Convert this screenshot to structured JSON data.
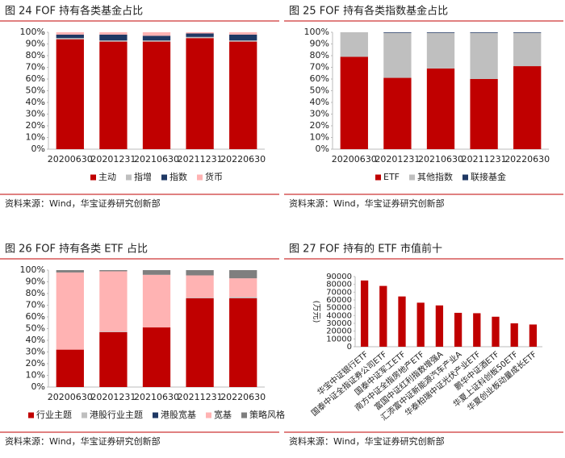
{
  "chart_data": [
    {
      "type": "stacked_bar",
      "title": "图 24 FOF 持有各类基金占比",
      "source": "资料来源：Wind，华宝证券研究创新部",
      "categories": [
        "20200630",
        "20201231",
        "20210630",
        "20211231",
        "20220630"
      ],
      "series": [
        {
          "name": "主动",
          "color": "#c00000",
          "values": [
            94,
            92,
            92,
            95,
            92
          ]
        },
        {
          "name": "指增",
          "color": "#bfbfbf",
          "values": [
            1,
            1,
            1,
            1,
            1
          ]
        },
        {
          "name": "指数",
          "color": "#1f3864",
          "values": [
            3,
            5,
            4,
            3,
            5
          ]
        },
        {
          "name": "货币",
          "color": "#ffb3b3",
          "values": [
            2,
            2,
            3,
            1,
            2
          ]
        }
      ],
      "ylim": [
        0,
        100
      ],
      "yticks": [
        {
          "value": 0,
          "label": "0%"
        },
        {
          "value": 10,
          "label": "10%"
        },
        {
          "value": 20,
          "label": "20%"
        },
        {
          "value": 30,
          "label": "30%"
        },
        {
          "value": 40,
          "label": "40%"
        },
        {
          "value": 50,
          "label": "50%"
        },
        {
          "value": 60,
          "label": "60%"
        },
        {
          "value": 70,
          "label": "70%"
        },
        {
          "value": 80,
          "label": "80%"
        },
        {
          "value": 90,
          "label": "90%"
        },
        {
          "value": 100,
          "label": "100%"
        }
      ],
      "legend": "bottom"
    },
    {
      "type": "stacked_bar",
      "title": "图 25 FOF 持有各类指数基金占比",
      "source": "资料来源：Wind，华宝证券研究创新部",
      "categories": [
        "20200630",
        "20201231",
        "20210630",
        "20211231",
        "20220630"
      ],
      "series": [
        {
          "name": "ETF",
          "color": "#c00000",
          "values": [
            79,
            61,
            69,
            60,
            71
          ]
        },
        {
          "name": "其他指数",
          "color": "#bfbfbf",
          "values": [
            21,
            38.5,
            30.5,
            39.5,
            28.5
          ]
        },
        {
          "name": "联接基金",
          "color": "#1f3864",
          "values": [
            0,
            0.5,
            0.5,
            0.5,
            0.5
          ]
        }
      ],
      "ylim": [
        0,
        100
      ],
      "yticks": [
        {
          "value": 0,
          "label": "0%"
        },
        {
          "value": 10,
          "label": "10%"
        },
        {
          "value": 20,
          "label": "20%"
        },
        {
          "value": 30,
          "label": "30%"
        },
        {
          "value": 40,
          "label": "40%"
        },
        {
          "value": 50,
          "label": "50%"
        },
        {
          "value": 60,
          "label": "60%"
        },
        {
          "value": 70,
          "label": "70%"
        },
        {
          "value": 80,
          "label": "80%"
        },
        {
          "value": 90,
          "label": "90%"
        },
        {
          "value": 100,
          "label": "100%"
        }
      ],
      "legend": "bottom"
    },
    {
      "type": "stacked_bar",
      "title": "图 26 FOF 持有各类 ETF 占比",
      "source": "资料来源：Wind，华宝证券研究创新部",
      "categories": [
        "20200630",
        "20201231",
        "20210630",
        "20211231",
        "20220630"
      ],
      "series": [
        {
          "name": "行业主题",
          "color": "#c00000",
          "values": [
            32,
            47,
            51,
            76,
            76
          ]
        },
        {
          "name": "港股行业主题",
          "color": "#bfbfbf",
          "values": [
            0,
            0.5,
            0,
            0.5,
            1
          ]
        },
        {
          "name": "港股宽基",
          "color": "#1f3864",
          "values": [
            0,
            0,
            0,
            0,
            0
          ]
        },
        {
          "name": "宽基",
          "color": "#ffb3b3",
          "values": [
            66,
            51.5,
            45,
            19,
            16
          ]
        },
        {
          "name": "策略风格",
          "color": "#7f7f7f",
          "values": [
            2,
            1,
            4,
            4.5,
            7
          ]
        }
      ],
      "ylim": [
        0,
        100
      ],
      "yticks": [
        {
          "value": 0,
          "label": "0%"
        },
        {
          "value": 10,
          "label": "10%"
        },
        {
          "value": 20,
          "label": "20%"
        },
        {
          "value": 30,
          "label": "30%"
        },
        {
          "value": 40,
          "label": "40%"
        },
        {
          "value": 50,
          "label": "50%"
        },
        {
          "value": 60,
          "label": "60%"
        },
        {
          "value": 70,
          "label": "70%"
        },
        {
          "value": 80,
          "label": "80%"
        },
        {
          "value": 90,
          "label": "90%"
        },
        {
          "value": 100,
          "label": "100%"
        }
      ],
      "legend": "bottom"
    },
    {
      "type": "bar",
      "title": "图 27 FOF 持有的 ETF 市值前十",
      "source": "资料来源：Wind，华宝证券研究创新部",
      "ylabel": "(万元)",
      "categories": [
        "华宝中证银行ETF",
        "国泰中证全指证券公司ETF",
        "国泰中证军工ETF",
        "南方中证全指房地产ETF",
        "富国中证红利指数增强A",
        "汇添富中证新能源汽车产业A",
        "华泰柏瑞中证光伏产业ETF",
        "鹏华中证酒ETF",
        "华夏上证科创板50ETF",
        "华夏创业板动量成长ETF"
      ],
      "values": [
        85000,
        78000,
        64500,
        56500,
        53000,
        43500,
        43000,
        38500,
        30000,
        28500
      ],
      "color": "#c00000",
      "ylim": [
        0,
        90000
      ],
      "yticks": [
        0,
        10000,
        20000,
        30000,
        40000,
        50000,
        60000,
        70000,
        80000,
        90000
      ]
    }
  ]
}
